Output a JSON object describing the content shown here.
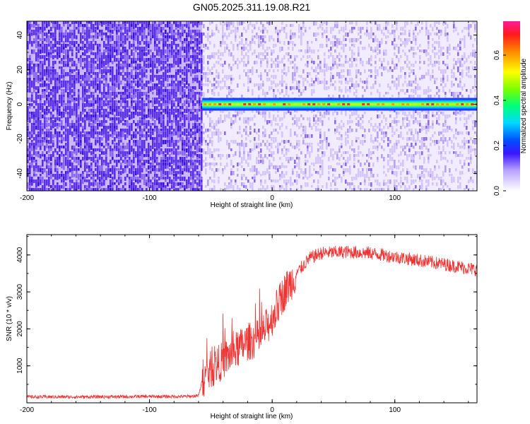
{
  "title": "GN05.2025.311.19.08.R21",
  "chart_data": [
    {
      "type": "heatmap",
      "xlabel": "Height of straight line (km)",
      "ylabel": "Frequency (Hz)",
      "xlim": [
        -200,
        167
      ],
      "ylim": [
        -50,
        48
      ],
      "x_ticks": [
        -200,
        -100,
        0,
        100
      ],
      "y_ticks": [
        -40,
        -20,
        0,
        20,
        40
      ],
      "colorbar": {
        "label": "Normalized spectral amplitude",
        "range": [
          0,
          0.75
        ],
        "ticks": [
          0.0,
          0.2,
          0.4,
          0.6
        ],
        "tick_labels": [
          "0.0",
          "0.2",
          "0.4",
          "0.6"
        ]
      },
      "regions": [
        {
          "x_range": [
            -200,
            -57
          ],
          "description_level": 0.1
        },
        {
          "x_range": [
            -57,
            167
          ],
          "description_level": 0.03
        }
      ],
      "signal_line": {
        "frequency": 0,
        "x_range": [
          -57,
          167
        ],
        "peak_level": 0.75
      }
    },
    {
      "type": "line",
      "xlabel": "Height of straight line (km)",
      "ylabel": "SNR (10 * v/v)",
      "xlim": [
        -200,
        167
      ],
      "ylim": [
        0,
        4550
      ],
      "x_ticks": [
        -200,
        -100,
        0,
        100
      ],
      "y_ticks": [
        1000,
        2000,
        3000,
        4000
      ],
      "color": "#ee3333",
      "series": [
        {
          "x": [
            -200,
            -150,
            -100,
            -70,
            -60,
            -57,
            -50,
            -40,
            -30,
            -20,
            -10,
            0,
            10,
            20,
            30,
            40,
            60,
            80,
            100,
            120,
            140,
            167
          ],
          "values": [
            160,
            160,
            170,
            170,
            190,
            600,
            900,
            1150,
            1400,
            1650,
            1750,
            2300,
            3000,
            3500,
            3900,
            4050,
            4080,
            4050,
            3950,
            3850,
            3750,
            3600
          ]
        }
      ]
    }
  ]
}
